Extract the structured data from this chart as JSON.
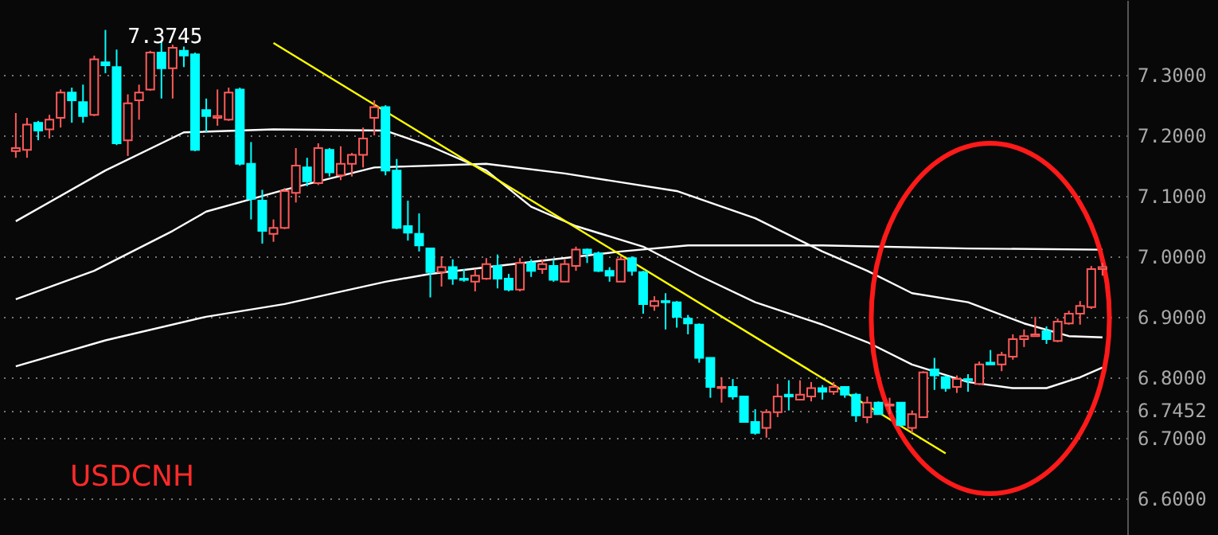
{
  "chart_data": {
    "type": "candlestick",
    "title": "USDCNH",
    "categories": [
      null,
      null,
      null,
      null,
      null,
      null,
      null,
      null,
      null,
      null,
      null,
      null,
      null,
      null,
      null,
      null,
      null,
      null,
      null,
      null,
      null,
      null,
      null,
      null,
      null,
      null,
      null,
      null,
      null,
      null,
      null,
      null,
      null,
      null,
      null,
      null,
      null,
      null,
      null,
      null,
      null,
      null,
      null,
      null,
      null,
      null,
      null,
      null,
      null,
      null,
      null,
      null,
      null,
      null,
      null,
      null,
      null,
      null,
      null,
      null,
      null,
      null,
      null,
      null,
      null,
      null,
      null,
      null,
      null,
      null,
      null,
      null,
      null,
      null,
      null,
      null,
      null,
      null,
      null,
      null,
      null,
      null,
      null,
      null,
      null,
      null,
      null,
      null,
      null,
      null,
      null,
      null,
      null,
      null,
      null,
      null,
      null,
      null
    ],
    "series": [
      {
        "ohlc": [
          [
            7.174,
            7.237,
            7.163,
            7.179
          ],
          [
            7.176,
            7.229,
            7.163,
            7.218
          ],
          [
            7.221,
            7.224,
            7.192,
            7.208
          ],
          [
            7.21,
            7.234,
            7.195,
            7.226
          ],
          [
            7.229,
            7.276,
            7.213,
            7.271
          ],
          [
            7.271,
            7.279,
            7.221,
            7.258
          ],
          [
            7.255,
            7.284,
            7.221,
            7.232
          ],
          [
            7.234,
            7.332,
            7.232,
            7.326
          ],
          [
            7.321,
            7.3745,
            7.303,
            7.316
          ],
          [
            7.313,
            7.342,
            7.184,
            7.187
          ],
          [
            7.192,
            7.268,
            7.166,
            7.253
          ],
          [
            7.258,
            7.284,
            7.226,
            7.271
          ],
          [
            7.276,
            7.34,
            7.274,
            7.337
          ],
          [
            7.337,
            7.355,
            7.261,
            7.311
          ],
          [
            7.311,
            7.35,
            7.261,
            7.345
          ],
          [
            7.34,
            7.347,
            7.313,
            7.332
          ],
          [
            7.334,
            7.337,
            7.174,
            7.176
          ],
          [
            7.242,
            7.261,
            7.205,
            7.232
          ],
          [
            7.229,
            7.276,
            7.216,
            7.232
          ],
          [
            7.226,
            7.279,
            7.224,
            7.271
          ],
          [
            7.276,
            7.279,
            7.15,
            7.153
          ],
          [
            7.153,
            7.189,
            7.061,
            7.095
          ],
          [
            7.092,
            7.11,
            7.021,
            7.042
          ],
          [
            7.037,
            7.061,
            7.024,
            7.047
          ],
          [
            7.047,
            7.113,
            7.045,
            7.108
          ],
          [
            7.105,
            7.179,
            7.089,
            7.15
          ],
          [
            7.147,
            7.163,
            7.116,
            7.124
          ],
          [
            7.121,
            7.187,
            7.118,
            7.179
          ],
          [
            7.176,
            7.179,
            7.132,
            7.139
          ],
          [
            7.134,
            7.182,
            7.126,
            7.153
          ],
          [
            7.153,
            7.171,
            7.132,
            7.168
          ],
          [
            7.168,
            7.213,
            7.147,
            7.195
          ],
          [
            7.229,
            7.258,
            7.2,
            7.247
          ],
          [
            7.247,
            7.25,
            7.134,
            7.142
          ],
          [
            7.142,
            7.161,
            7.045,
            7.047
          ],
          [
            7.05,
            7.092,
            7.026,
            7.039
          ],
          [
            7.037,
            7.071,
            7.008,
            7.018
          ],
          [
            7.013,
            7.013,
            6.932,
            6.974
          ],
          [
            6.974,
            7.0,
            6.95,
            6.982
          ],
          [
            6.982,
            6.995,
            6.953,
            6.963
          ],
          [
            6.963,
            6.979,
            6.958,
            6.961
          ],
          [
            6.958,
            6.979,
            6.942,
            6.968
          ],
          [
            6.963,
            6.997,
            6.961,
            6.987
          ],
          [
            6.984,
            7.003,
            6.947,
            6.963
          ],
          [
            6.963,
            6.971,
            6.942,
            6.945
          ],
          [
            6.945,
            6.997,
            6.942,
            6.989
          ],
          [
            6.989,
            6.995,
            6.966,
            6.976
          ],
          [
            6.979,
            6.995,
            6.971,
            6.987
          ],
          [
            6.984,
            6.995,
            6.958,
            6.961
          ],
          [
            6.958,
            6.995,
            6.958,
            6.987
          ],
          [
            6.984,
            7.016,
            6.976,
            7.011
          ],
          [
            7.011,
            7.013,
            6.989,
            7.005
          ],
          [
            7.005,
            7.008,
            6.974,
            6.976
          ],
          [
            6.976,
            6.982,
            6.958,
            6.968
          ],
          [
            6.958,
            7.0,
            6.958,
            6.995
          ],
          [
            6.997,
            7.0,
            6.968,
            6.976
          ],
          [
            6.974,
            6.976,
            6.905,
            6.921
          ],
          [
            6.918,
            6.934,
            6.91,
            6.926
          ],
          [
            6.926,
            6.939,
            6.879,
            6.924
          ],
          [
            6.924,
            6.926,
            6.882,
            6.9
          ],
          [
            6.897,
            6.903,
            6.871,
            6.889
          ],
          [
            6.887,
            6.889,
            6.824,
            6.832
          ],
          [
            6.832,
            6.832,
            6.766,
            6.784
          ],
          [
            6.782,
            6.8,
            6.758,
            6.784
          ],
          [
            6.784,
            6.797,
            6.763,
            6.768
          ],
          [
            6.768,
            6.768,
            6.726,
            6.726
          ],
          [
            6.726,
            6.747,
            6.705,
            6.708
          ],
          [
            6.716,
            6.747,
            6.7,
            6.742
          ],
          [
            6.742,
            6.789,
            6.734,
            6.768
          ],
          [
            6.771,
            6.795,
            6.745,
            6.768
          ],
          [
            6.763,
            6.795,
            6.763,
            6.771
          ],
          [
            6.768,
            6.792,
            6.76,
            6.782
          ],
          [
            6.782,
            6.787,
            6.763,
            6.776
          ],
          [
            6.776,
            6.792,
            6.771,
            6.784
          ],
          [
            6.784,
            6.784,
            6.766,
            6.771
          ],
          [
            6.771,
            6.774,
            6.726,
            6.737
          ],
          [
            6.734,
            6.768,
            6.724,
            6.758
          ],
          [
            6.758,
            6.76,
            6.739,
            6.739
          ],
          [
            6.753,
            6.766,
            6.739,
            6.755
          ],
          [
            6.758,
            6.758,
            6.718,
            6.721
          ],
          [
            6.716,
            6.745,
            6.708,
            6.739
          ],
          [
            6.734,
            6.81,
            6.734,
            6.808
          ],
          [
            6.813,
            6.832,
            6.779,
            6.803
          ],
          [
            6.8,
            6.803,
            6.776,
            6.782
          ],
          [
            6.784,
            6.803,
            6.774,
            6.797
          ],
          [
            6.797,
            6.805,
            6.776,
            6.795
          ],
          [
            6.789,
            6.826,
            6.787,
            6.821
          ],
          [
            6.824,
            6.845,
            6.821,
            6.821
          ],
          [
            6.821,
            6.842,
            6.81,
            6.837
          ],
          [
            6.834,
            6.871,
            6.829,
            6.863
          ],
          [
            6.863,
            6.879,
            6.85,
            6.868
          ],
          [
            6.868,
            6.9,
            6.868,
            6.871
          ],
          [
            6.876,
            6.884,
            6.855,
            6.863
          ],
          [
            6.86,
            6.897,
            6.858,
            6.892
          ],
          [
            6.889,
            6.91,
            6.887,
            6.905
          ],
          [
            6.905,
            6.926,
            6.887,
            6.918
          ],
          [
            6.916,
            6.984,
            6.913,
            6.979
          ],
          [
            6.979,
            6.989,
            6.968,
            6.982
          ]
        ],
        "colors": [
          "#ff5a5a",
          "#ff5a5a",
          "#00ffff",
          "#ff5a5a",
          "#ff5a5a",
          "#00ffff",
          "#00ffff",
          "#ff5a5a",
          "#00ffff",
          "#00ffff",
          "#ff5a5a",
          "#ff5a5a",
          "#ff5a5a",
          "#00ffff",
          "#ff5a5a",
          "#00ffff",
          "#00ffff",
          "#00ffff",
          "#ff5a5a",
          "#ff5a5a",
          "#00ffff",
          "#00ffff",
          "#00ffff",
          "#ff5a5a",
          "#ff5a5a",
          "#ff5a5a",
          "#00ffff",
          "#ff5a5a",
          "#00ffff",
          "#ff5a5a",
          "#ff5a5a",
          "#ff5a5a",
          "#ff5a5a",
          "#00ffff",
          "#00ffff",
          "#00ffff",
          "#00ffff",
          "#00ffff",
          "#ff5a5a",
          "#00ffff",
          "#00ffff",
          "#ff5a5a",
          "#ff5a5a",
          "#00ffff",
          "#00ffff",
          "#ff5a5a",
          "#00ffff",
          "#ff5a5a",
          "#00ffff",
          "#ff5a5a",
          "#ff5a5a",
          "#00ffff",
          "#00ffff",
          "#00ffff",
          "#ff5a5a",
          "#00ffff",
          "#00ffff",
          "#ff5a5a",
          "#00ffff",
          "#00ffff",
          "#00ffff",
          "#00ffff",
          "#00ffff",
          "#ff5a5a",
          "#00ffff",
          "#00ffff",
          "#00ffff",
          "#ff5a5a",
          "#ff5a5a",
          "#00ffff",
          "#ff5a5a",
          "#ff5a5a",
          "#00ffff",
          "#ff5a5a",
          "#00ffff",
          "#00ffff",
          "#ff5a5a",
          "#00ffff",
          "#ff5a5a",
          "#00ffff",
          "#ff5a5a",
          "#ff5a5a",
          "#00ffff",
          "#00ffff",
          "#ff5a5a",
          "#00ffff",
          "#ff5a5a",
          "#00ffff",
          "#ff5a5a",
          "#ff5a5a",
          "#ff5a5a",
          "#ff5a5a",
          "#00ffff",
          "#ff5a5a",
          "#ff5a5a",
          "#ff5a5a",
          "#ff5a5a",
          "#ff5a5a"
        ]
      },
      {
        "type": "line",
        "color": "#ffffff",
        "values": [
          7.058,
          null,
          null,
          null,
          null,
          null,
          null,
          null,
          7.142,
          null,
          null,
          null,
          null,
          null,
          null,
          7.205,
          null,
          null,
          null,
          null,
          null,
          null,
          null,
          7.21,
          null,
          null,
          null,
          null,
          null,
          null,
          null,
          null,
          null,
          7.208,
          null,
          null,
          null,
          7.182,
          null,
          null,
          null,
          null,
          7.142,
          null,
          null,
          null,
          7.082,
          null,
          null,
          null,
          7.05,
          null,
          null,
          null,
          null,
          null,
          7.016,
          null,
          null,
          null,
          null,
          6.968,
          null,
          null,
          null,
          null,
          6.924,
          null,
          null,
          null,
          null,
          null,
          6.887,
          null,
          null,
          null,
          6.858,
          null,
          null,
          null,
          6.821,
          null,
          null,
          null,
          null,
          6.792,
          null,
          null,
          null,
          6.782,
          null,
          null,
          6.782,
          null,
          null,
          6.8,
          null,
          6.816
        ]
      },
      {
        "type": "line",
        "color": "#ffffff",
        "values": [
          6.929,
          null,
          null,
          null,
          null,
          null,
          null,
          6.976,
          null,
          null,
          null,
          null,
          null,
          null,
          7.042,
          null,
          null,
          7.074,
          null,
          null,
          null,
          null,
          null,
          null,
          7.11,
          null,
          null,
          null,
          null,
          null,
          null,
          null,
          7.147,
          null,
          null,
          null,
          null,
          null,
          null,
          null,
          null,
          null,
          7.153,
          null,
          null,
          null,
          null,
          null,
          null,
          7.137,
          null,
          null,
          null,
          null,
          null,
          null,
          null,
          null,
          null,
          7.108,
          null,
          null,
          null,
          null,
          null,
          null,
          7.063,
          null,
          null,
          null,
          null,
          null,
          7.008,
          null,
          null,
          null,
          6.976,
          null,
          null,
          null,
          6.939,
          null,
          null,
          null,
          null,
          6.924,
          null,
          null,
          null,
          null,
          6.889,
          null,
          null,
          null,
          6.868,
          null,
          null,
          6.866
        ]
      },
      {
        "type": "line",
        "color": "#ffffff",
        "values": [
          6.818,
          null,
          null,
          null,
          null,
          null,
          null,
          null,
          6.861,
          null,
          null,
          null,
          null,
          null,
          null,
          null,
          null,
          6.9,
          null,
          null,
          null,
          null,
          null,
          null,
          6.921,
          null,
          null,
          null,
          null,
          null,
          null,
          null,
          null,
          6.958,
          null,
          null,
          null,
          6.971,
          null,
          null,
          null,
          null,
          null,
          null,
          null,
          null,
          null,
          null,
          6.995,
          null,
          null,
          null,
          null,
          null,
          7.008,
          null,
          null,
          null,
          null,
          null,
          7.018,
          null,
          null,
          null,
          null,
          null,
          null,
          null,
          null,
          null,
          null,
          null,
          7.018,
          null,
          null,
          null,
          null,
          null,
          null,
          null,
          null,
          null,
          null,
          null,
          null,
          7.013,
          null,
          null,
          null,
          null,
          null,
          null,
          null,
          null,
          null,
          null,
          null,
          7.011
        ]
      },
      {
        "type": "line",
        "color": "#ffff00",
        "values": [
          null,
          null,
          null,
          null,
          null,
          null,
          null,
          null,
          null,
          null,
          null,
          null,
          null,
          null,
          null,
          null,
          null,
          null,
          null,
          null,
          null,
          null,
          null,
          7.353,
          null,
          null,
          null,
          null,
          null,
          null,
          null,
          null,
          null,
          null,
          null,
          null,
          null,
          null,
          null,
          null,
          null,
          null,
          null,
          null,
          null,
          null,
          null,
          null,
          null,
          null,
          null,
          null,
          null,
          null,
          null,
          null,
          null,
          null,
          null,
          null,
          null,
          null,
          null,
          null,
          null,
          null,
          null,
          null,
          null,
          null,
          null,
          null,
          null,
          null,
          null,
          null,
          null,
          null,
          null,
          null,
          null,
          null,
          null,
          6.674,
          null,
          null,
          null,
          null,
          null,
          null,
          null,
          null,
          null,
          null,
          null,
          null,
          null,
          null
        ]
      }
    ],
    "ylim": [
      6.539,
      7.424
    ],
    "yticks": [
      {
        "value": 7.3,
        "label": "7.3000"
      },
      {
        "value": 7.2,
        "label": "7.2000"
      },
      {
        "value": 7.1,
        "label": "7.1000"
      },
      {
        "value": 7.0,
        "label": "7.0000"
      },
      {
        "value": 6.9,
        "label": "6.9000"
      },
      {
        "value": 6.8,
        "label": "6.8000"
      },
      {
        "value": 6.7,
        "label": "6.7000"
      },
      {
        "value": 6.6,
        "label": "6.6000"
      },
      {
        "value": 6.7452,
        "label": "6.7452"
      }
    ],
    "annotations": [
      "7.3745"
    ],
    "grid": "y",
    "tick_labels": "y"
  }
}
